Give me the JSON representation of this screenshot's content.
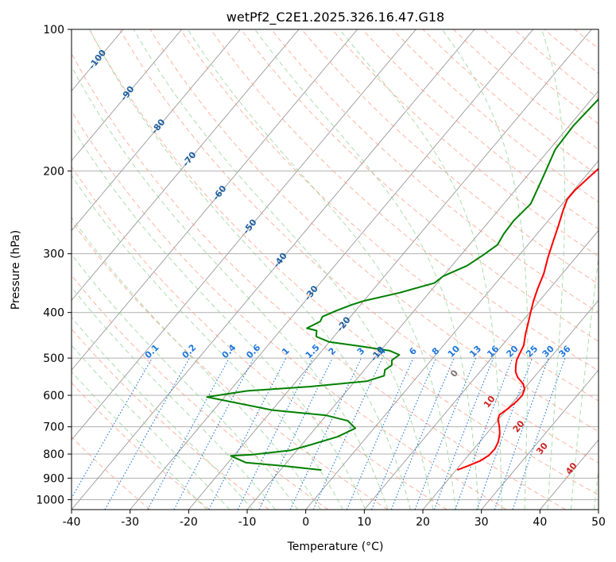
{
  "chart_data": {
    "type": "line",
    "title": "wetPf2_C2E1.2025.326.16.47.G18",
    "xlabel": "Temperature (°C)",
    "ylabel": "Pressure (hPa)",
    "xlim": [
      -40,
      50
    ],
    "ylim": [
      1050,
      100
    ],
    "y_scale": "log",
    "grid": true,
    "x_ticks": [
      "-40",
      "-30",
      "-20",
      "-10",
      "0",
      "10",
      "20",
      "30",
      "40",
      "50"
    ],
    "y_ticks": [
      "100",
      "200",
      "300",
      "400",
      "500",
      "600",
      "700",
      "800",
      "900",
      "1000"
    ],
    "series": [
      {
        "color": "#ff0000",
        "points": [
          [
            20.2,
            865
          ],
          [
            21.5,
            847
          ],
          [
            22.8,
            827
          ],
          [
            23.5,
            805
          ],
          [
            23.6,
            780
          ],
          [
            23.2,
            755
          ],
          [
            22.3,
            725
          ],
          [
            21.2,
            700
          ],
          [
            19.9,
            675
          ],
          [
            19.5,
            660
          ],
          [
            20.0,
            643
          ],
          [
            20.5,
            620
          ],
          [
            20.6,
            600
          ],
          [
            20.1,
            582
          ],
          [
            19.1,
            567
          ],
          [
            17.3,
            550
          ],
          [
            16.1,
            535
          ],
          [
            15.3,
            520
          ],
          [
            14.6,
            505
          ],
          [
            14.2,
            490
          ],
          [
            13.7,
            470
          ],
          [
            12.4,
            445
          ],
          [
            11.2,
            420
          ],
          [
            10.0,
            397
          ],
          [
            9.0,
            378
          ],
          [
            7.9,
            355
          ],
          [
            6.8,
            330
          ],
          [
            5.2,
            305
          ],
          [
            3.8,
            282
          ],
          [
            2.5,
            262
          ],
          [
            1.1,
            243
          ],
          [
            0.2,
            230
          ],
          [
            0.2,
            220
          ],
          [
            0.8,
            205
          ],
          [
            1.3,
            195
          ],
          [
            2.0,
            184
          ],
          [
            3.2,
            172
          ],
          [
            5.0,
            160
          ],
          [
            6.3,
            148
          ],
          [
            7.0,
            140
          ],
          [
            7.5,
            132
          ],
          [
            7.8,
            124
          ],
          [
            8.4,
            117
          ],
          [
            9.3,
            110
          ],
          [
            10.0,
            104
          ],
          [
            10.6,
            100
          ]
        ]
      },
      {
        "color": "#008000",
        "points": [
          [
            -3.0,
            865
          ],
          [
            -10.0,
            848
          ],
          [
            -17.0,
            834
          ],
          [
            -20.5,
            807
          ],
          [
            -17.0,
            802
          ],
          [
            -11.0,
            785
          ],
          [
            -8.5,
            765
          ],
          [
            -5.0,
            735
          ],
          [
            -3.2,
            705
          ],
          [
            -5.5,
            680
          ],
          [
            -10.0,
            662
          ],
          [
            -20.0,
            645
          ],
          [
            -33.0,
            605
          ],
          [
            -27.0,
            587
          ],
          [
            -17.0,
            575
          ],
          [
            -8.0,
            560
          ],
          [
            -5.8,
            545
          ],
          [
            -6.5,
            530
          ],
          [
            -6.0,
            518
          ],
          [
            -6.7,
            505
          ],
          [
            -6.2,
            492
          ],
          [
            -8.5,
            482
          ],
          [
            -14.0,
            472
          ],
          [
            -20.0,
            462
          ],
          [
            -23.0,
            450
          ],
          [
            -23.8,
            437
          ],
          [
            -25.8,
            432
          ],
          [
            -24.5,
            418
          ],
          [
            -24.8,
            408
          ],
          [
            -23.2,
            396
          ],
          [
            -21.5,
            385
          ],
          [
            -20.0,
            378
          ],
          [
            -15.0,
            363
          ],
          [
            -10.5,
            346
          ],
          [
            -10.0,
            335
          ],
          [
            -7.4,
            318
          ],
          [
            -6.2,
            302
          ],
          [
            -5.2,
            287
          ],
          [
            -5.7,
            272
          ],
          [
            -5.9,
            255
          ],
          [
            -5.4,
            235
          ],
          [
            -7.2,
            205
          ],
          [
            -9.0,
            180
          ],
          [
            -9.3,
            160
          ],
          [
            -8.8,
            140
          ],
          [
            -9.7,
            128
          ],
          [
            -7.3,
            120
          ],
          [
            -3.0,
            110
          ],
          [
            0.5,
            100
          ]
        ]
      }
    ],
    "mixing_ratio_labels": [
      "0.1",
      "0.2",
      "0.4",
      "0.6",
      "1",
      "1.5",
      "2",
      "3",
      "4",
      "6",
      "8",
      "10",
      "13",
      "16",
      "20",
      "25",
      "30",
      "36"
    ],
    "dry_adiabat_labels": [
      "-100",
      "-90",
      "-80",
      "-70",
      "-60",
      "-50",
      "-40",
      "-30",
      "-20",
      "-10"
    ],
    "moist_adiabat_labels": [
      "0",
      "10",
      "20",
      "30",
      "40"
    ],
    "colors": {
      "temperature": "#ff0000",
      "dewpoint": "#008000",
      "isotherm": "#999999",
      "dry_adiabat": "#ff9980",
      "moist_adiabat": "#8fd18f",
      "mixing_ratio": "#1f77dd",
      "dry_label": "#1f5f9f",
      "moist_label": "#cc2222"
    }
  }
}
